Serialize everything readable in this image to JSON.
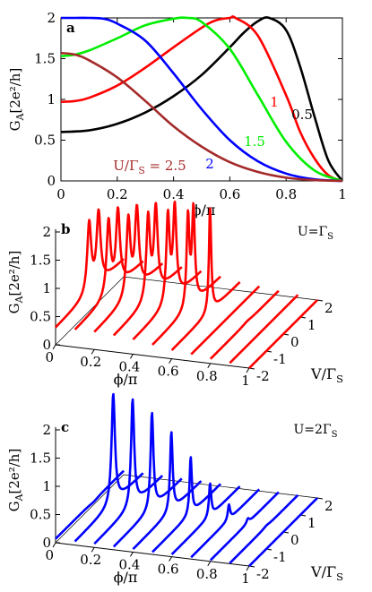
{
  "chart_data": [
    {
      "type": "line",
      "panel_label": "a",
      "xlabel": "ϕ/π",
      "ylabel": "G_A[2e²/h]",
      "xlim": [
        0,
        1
      ],
      "ylim": [
        0,
        2
      ],
      "xticks": [
        "0",
        "0.2",
        "0.4",
        "0.6",
        "0.8",
        "1"
      ],
      "yticks": [
        "0",
        "0.5",
        "1",
        "1.5",
        "2"
      ],
      "series": [
        {
          "name": "0.5",
          "color": "#000000",
          "x": [
            0,
            0.1,
            0.2,
            0.3,
            0.4,
            0.5,
            0.6,
            0.65,
            0.7,
            0.74,
            0.8,
            0.85,
            0.9,
            0.95,
            1.0
          ],
          "y": [
            0.6,
            0.62,
            0.7,
            0.84,
            1.04,
            1.3,
            1.64,
            1.82,
            1.96,
            2.0,
            1.85,
            1.4,
            0.8,
            0.25,
            0.0
          ]
        },
        {
          "name": "1",
          "color": "#ff0000",
          "x": [
            0,
            0.05,
            0.1,
            0.2,
            0.3,
            0.4,
            0.5,
            0.55,
            0.6,
            0.62,
            0.7,
            0.8,
            0.85,
            0.9,
            0.95,
            1.0
          ],
          "y": [
            0.97,
            0.98,
            1.02,
            1.17,
            1.39,
            1.64,
            1.88,
            1.97,
            2.0,
            2.0,
            1.78,
            1.05,
            0.6,
            0.28,
            0.07,
            0.0
          ]
        },
        {
          "name": "1.5",
          "color": "#00ee00",
          "x": [
            0,
            0.05,
            0.1,
            0.2,
            0.3,
            0.4,
            0.45,
            0.5,
            0.6,
            0.7,
            0.8,
            0.9,
            1.0
          ],
          "y": [
            1.53,
            1.55,
            1.6,
            1.75,
            1.91,
            1.99,
            2.0,
            1.95,
            1.62,
            1.05,
            0.48,
            0.13,
            0.0
          ]
        },
        {
          "name": "2",
          "color": "#0000ff",
          "x": [
            0,
            0.05,
            0.1,
            0.15,
            0.2,
            0.3,
            0.4,
            0.5,
            0.6,
            0.7,
            0.8,
            0.9,
            1.0
          ],
          "y": [
            2.0,
            2.0,
            2.0,
            1.99,
            1.93,
            1.72,
            1.32,
            0.88,
            0.5,
            0.24,
            0.09,
            0.02,
            0.0
          ]
        },
        {
          "name": "U/Γ_S = 2.5",
          "color": "#a52a2a",
          "x": [
            0,
            0.05,
            0.1,
            0.2,
            0.3,
            0.4,
            0.5,
            0.6,
            0.7,
            0.8,
            0.9,
            1.0
          ],
          "y": [
            1.57,
            1.55,
            1.48,
            1.27,
            0.98,
            0.67,
            0.42,
            0.23,
            0.11,
            0.04,
            0.01,
            0.0
          ]
        }
      ],
      "curve_labels": [
        "0.5",
        "1",
        "1.5",
        "2",
        "U/Γ_S = 2.5"
      ]
    },
    {
      "type": "line",
      "panel_label": "b",
      "annotation": "U=Γ_S",
      "color": "#ff0000",
      "xlabel": "ϕ/π",
      "ylabel": "G_A[2e²/h]",
      "zlabel": "V/Γ_S",
      "phi_ticks": [
        "0",
        "0.2",
        "0.4",
        "0.6",
        "0.8",
        "1"
      ],
      "v_ticks": [
        "-2",
        "-1",
        "0",
        "1",
        "2"
      ],
      "g_ticks": [
        "0",
        "0.5",
        "1",
        "1.5",
        "2"
      ],
      "zlim": [
        0,
        2
      ],
      "v_range": [
        -2,
        2
      ],
      "phi": [
        0.0,
        0.1,
        0.2,
        0.3,
        0.4,
        0.5,
        0.6,
        0.7,
        0.8,
        0.9,
        1.0
      ],
      "curves": [
        {
          "base": 0.3,
          "peak_v": 0.25,
          "peak_g": 1.68,
          "width": 0.14,
          "sep": 0.55
        },
        {
          "base": 0.3,
          "peak_v": 0.25,
          "peak_g": 1.76,
          "width": 0.14,
          "sep": 0.55
        },
        {
          "base": 0.3,
          "peak_v": 0.25,
          "peak_g": 1.84,
          "width": 0.14,
          "sep": 0.5
        },
        {
          "base": 0.28,
          "peak_v": 0.25,
          "peak_g": 1.92,
          "width": 0.13,
          "sep": 0.45
        },
        {
          "base": 0.25,
          "peak_v": 0.25,
          "peak_g": 1.98,
          "width": 0.12,
          "sep": 0.4
        },
        {
          "base": 0.2,
          "peak_v": 0.25,
          "peak_g": 2.0,
          "width": 0.1,
          "sep": 0.32
        },
        {
          "base": 0.15,
          "peak_v": 0.25,
          "peak_g": 2.0,
          "width": 0.08,
          "sep": 0.0
        },
        {
          "base": 0.12,
          "peak_v": 0.2,
          "peak_g": 0.12,
          "width": 0.2,
          "sep": 0.0
        },
        {
          "base": 0.08,
          "peak_v": 0.15,
          "peak_g": 0.1,
          "width": 0.3,
          "sep": 0.0
        },
        {
          "base": 0.05,
          "peak_v": 0.1,
          "peak_g": 0.05,
          "width": 0.3,
          "sep": 0.0
        },
        {
          "base": 0.0,
          "peak_v": 0.0,
          "peak_g": 0.0,
          "width": 0.3,
          "sep": 0.0
        }
      ]
    },
    {
      "type": "line",
      "panel_label": "c",
      "annotation": "U=2Γ_S",
      "color": "#0000ff",
      "xlabel": "ϕ/π",
      "ylabel": "G_A[2e²/h]",
      "zlabel": "V/Γ_S",
      "phi_ticks": [
        "0",
        "0.2",
        "0.4",
        "0.6",
        "0.8",
        "1"
      ],
      "v_ticks": [
        "-2",
        "-1",
        "0",
        "1",
        "2"
      ],
      "g_ticks": [
        "0",
        "0.5",
        "1",
        "1.5",
        "2"
      ],
      "zlim": [
        0,
        2
      ],
      "v_range": [
        -2,
        2
      ],
      "phi": [
        0.0,
        0.1,
        0.2,
        0.3,
        0.4,
        0.5,
        0.6,
        0.7,
        0.8,
        0.9,
        1.0
      ],
      "curves": [
        {
          "base": 0.07,
          "peak_v": 0.25,
          "peak_g": 0.05,
          "width": 0.3,
          "sep": 0.0
        },
        {
          "base": 0.06,
          "peak_v": 0.25,
          "peak_g": 2.0,
          "width": 0.12,
          "sep": 0.0
        },
        {
          "base": 0.06,
          "peak_v": 0.25,
          "peak_g": 1.95,
          "width": 0.11,
          "sep": 0.0
        },
        {
          "base": 0.05,
          "peak_v": 0.25,
          "peak_g": 1.75,
          "width": 0.1,
          "sep": 0.0
        },
        {
          "base": 0.05,
          "peak_v": 0.25,
          "peak_g": 1.45,
          "width": 0.09,
          "sep": 0.0
        },
        {
          "base": 0.04,
          "peak_v": 0.25,
          "peak_g": 1.05,
          "width": 0.08,
          "sep": 0.0
        },
        {
          "base": 0.04,
          "peak_v": 0.25,
          "peak_g": 0.62,
          "width": 0.08,
          "sep": 0.0
        },
        {
          "base": 0.03,
          "peak_v": 0.22,
          "peak_g": 0.3,
          "width": 0.08,
          "sep": 0.0
        },
        {
          "base": 0.02,
          "peak_v": 0.2,
          "peak_g": 0.1,
          "width": 0.1,
          "sep": 0.0
        },
        {
          "base": 0.01,
          "peak_v": 0.15,
          "peak_g": 0.03,
          "width": 0.2,
          "sep": 0.0
        },
        {
          "base": 0.0,
          "peak_v": 0.0,
          "peak_g": 0.0,
          "width": 0.3,
          "sep": 0.0
        }
      ]
    }
  ]
}
